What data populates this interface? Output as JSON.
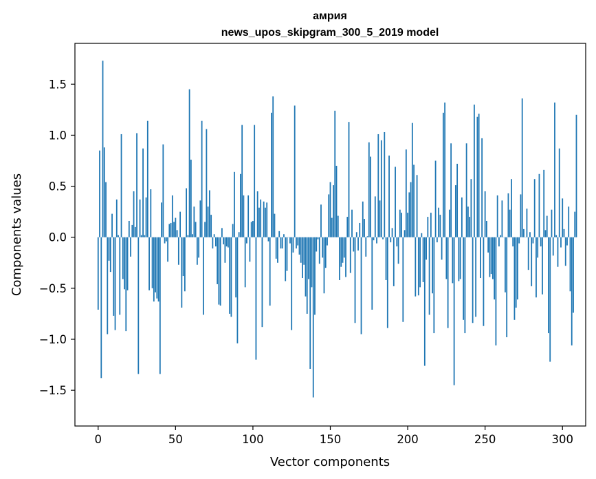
{
  "chart_data": {
    "type": "bar",
    "title": "амрия",
    "subtitle": "news_upos_skipgram_300_5_2019 model",
    "xlabel": "Vector components",
    "ylabel": "Components values",
    "xlim": [
      -15,
      315
    ],
    "ylim": [
      -1.85,
      1.9
    ],
    "xticks": [
      0,
      50,
      100,
      150,
      200,
      250,
      300
    ],
    "yticks": [
      -1.5,
      -1.0,
      -0.5,
      0.0,
      0.5,
      1.0,
      1.5
    ],
    "ytick_labels": [
      "−1.5",
      "−1.0",
      "−0.5",
      "0.0",
      "0.5",
      "1.0",
      "1.5"
    ],
    "bar_color": "#1f77b4",
    "series": [
      {
        "name": "components",
        "values": [
          -0.71,
          0.85,
          -1.38,
          1.73,
          0.88,
          0.54,
          -0.95,
          -0.23,
          -0.34,
          0.23,
          -0.77,
          -0.91,
          0.37,
          0.02,
          -0.76,
          1.01,
          -0.41,
          -0.51,
          -0.92,
          -0.52,
          0.16,
          -0.19,
          0.12,
          0.45,
          0.1,
          1.02,
          -1.34,
          0.37,
          0.02,
          0.87,
          0.02,
          0.39,
          1.14,
          -0.52,
          0.47,
          -0.5,
          -0.63,
          -0.54,
          -0.6,
          -0.63,
          -1.34,
          0.34,
          0.91,
          -0.06,
          -0.04,
          -0.24,
          0.13,
          0.14,
          0.41,
          0.15,
          0.19,
          0.07,
          -0.27,
          0.25,
          -0.69,
          -0.38,
          -0.53,
          0.48,
          0.02,
          1.45,
          0.76,
          0.03,
          0.3,
          0.15,
          -0.27,
          -0.2,
          0.36,
          1.14,
          -0.76,
          0.15,
          1.06,
          0.3,
          0.46,
          0.22,
          -0.11,
          0.03,
          -0.09,
          -0.46,
          -0.66,
          -0.67,
          0.09,
          -0.07,
          -0.25,
          -0.09,
          -0.1,
          -0.75,
          -0.78,
          0.13,
          0.64,
          -0.59,
          -1.04,
          0.05,
          0.62,
          1.1,
          0.41,
          -0.49,
          -0.06,
          0.41,
          -0.24,
          0.15,
          0.16,
          1.1,
          -1.2,
          0.45,
          0.29,
          0.37,
          -0.88,
          0.35,
          0.29,
          0.34,
          -0.04,
          -0.67,
          1.22,
          1.38,
          0.23,
          -0.21,
          -0.25,
          0.06,
          -0.11,
          -0.11,
          0.03,
          -0.43,
          -0.33,
          0.0,
          -0.06,
          -0.91,
          -0.15,
          1.29,
          -0.11,
          -0.08,
          -0.17,
          -0.25,
          -0.4,
          -0.27,
          -0.58,
          -0.75,
          -0.41,
          -1.29,
          -0.49,
          -1.57,
          -0.76,
          -0.14,
          -0.02,
          -0.26,
          0.32,
          -0.2,
          -0.55,
          -0.3,
          -0.08,
          0.42,
          0.54,
          0.19,
          0.51,
          1.24,
          0.7,
          0.21,
          -0.42,
          -0.29,
          -0.25,
          -0.2,
          -0.39,
          0.2,
          1.13,
          -0.35,
          0.27,
          -0.14,
          -0.84,
          0.05,
          -0.13,
          0.14,
          -0.95,
          0.35,
          0.18,
          -0.19,
          0.01,
          0.93,
          0.79,
          -0.71,
          -0.03,
          0.4,
          -0.06,
          1.01,
          0.36,
          0.95,
          -0.02,
          1.03,
          -0.42,
          -0.89,
          0.8,
          -0.05,
          0.09,
          -0.48,
          0.69,
          -0.09,
          -0.26,
          0.27,
          0.24,
          -0.83,
          0.07,
          0.86,
          0.24,
          0.44,
          0.54,
          1.12,
          0.71,
          -0.58,
          0.61,
          -0.57,
          -0.49,
          0.04,
          -0.44,
          -1.26,
          -0.22,
          0.2,
          -0.76,
          0.24,
          -0.55,
          -0.94,
          0.75,
          -0.05,
          0.29,
          0.22,
          -0.22,
          1.22,
          1.32,
          -0.41,
          -0.89,
          0.27,
          0.92,
          -0.45,
          -1.45,
          0.51,
          0.72,
          -0.43,
          -0.41,
          0.39,
          -0.81,
          -0.94,
          0.92,
          0.3,
          0.2,
          0.57,
          -0.84,
          1.3,
          -0.78,
          1.18,
          1.21,
          -0.4,
          0.97,
          -0.87,
          0.45,
          0.16,
          -0.15,
          -0.39,
          -0.36,
          -0.41,
          -0.61,
          -1.06,
          0.41,
          -0.09,
          0.02,
          0.36,
          0.0,
          -0.54,
          -0.98,
          0.43,
          0.27,
          0.57,
          -0.09,
          -0.81,
          -0.69,
          -0.61,
          -0.06,
          0.42,
          1.36,
          0.08,
          0.0,
          0.28,
          -0.32,
          0.05,
          -0.48,
          -0.06,
          0.57,
          -0.59,
          -0.2,
          0.62,
          -0.09,
          -0.56,
          0.66,
          0.07,
          0.21,
          -0.94,
          -1.22,
          0.27,
          -0.18,
          1.32,
          0.02,
          -0.29,
          0.87,
          -0.1,
          0.38,
          0.08,
          -0.28,
          -0.08,
          0.3,
          -0.53,
          -1.06,
          -0.74,
          0.25,
          1.2
        ]
      }
    ]
  }
}
